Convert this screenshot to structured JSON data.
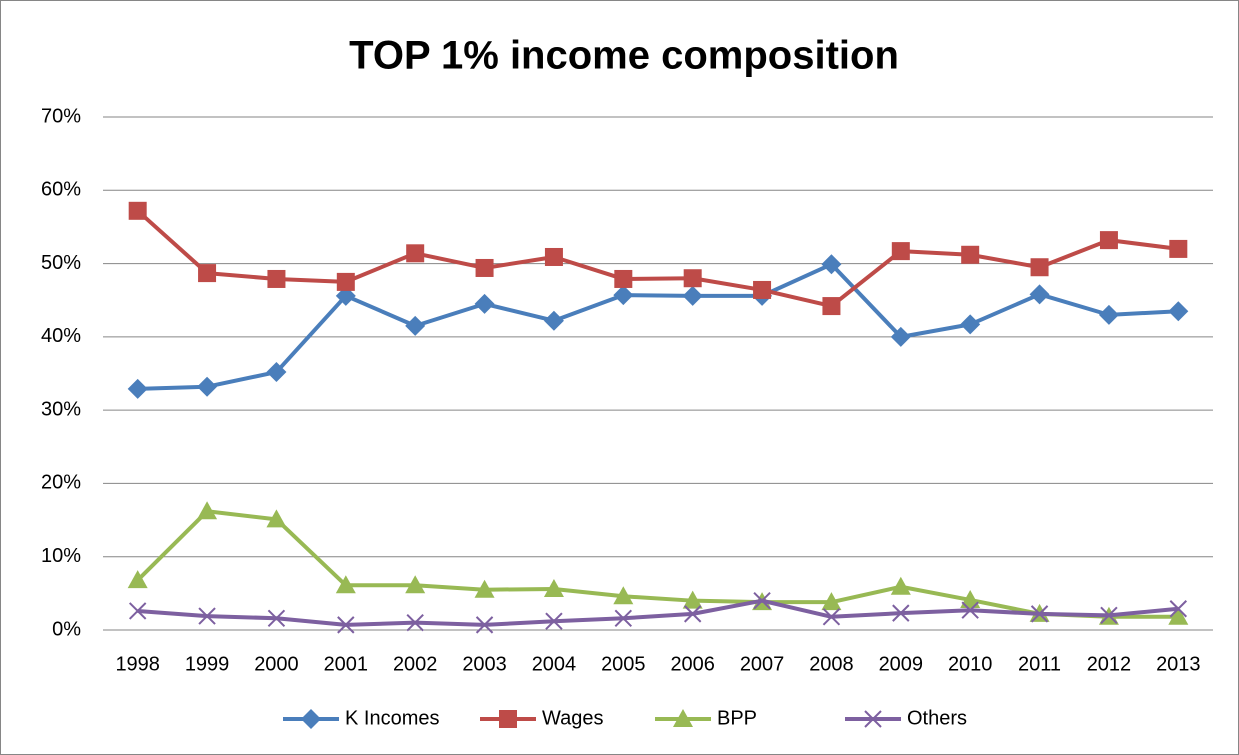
{
  "chart_data": {
    "type": "line",
    "title": "TOP 1% income composition",
    "categories": [
      "1998",
      "1999",
      "2000",
      "2001",
      "2002",
      "2003",
      "2004",
      "2005",
      "2006",
      "2007",
      "2008",
      "2009",
      "2010",
      "2011",
      "2012",
      "2013"
    ],
    "series": [
      {
        "name": "K Incomes",
        "color": "#4a7ebb",
        "marker": "diamond",
        "values": [
          32.9,
          33.2,
          35.2,
          45.6,
          41.5,
          44.5,
          42.2,
          45.7,
          45.6,
          45.6,
          49.9,
          40.0,
          41.7,
          45.8,
          43.0,
          43.5
        ]
      },
      {
        "name": "Wages",
        "color": "#be4b48",
        "marker": "square",
        "values": [
          57.2,
          48.7,
          47.9,
          47.5,
          51.4,
          49.4,
          50.9,
          47.9,
          48.0,
          46.4,
          44.2,
          51.7,
          51.2,
          49.5,
          53.2,
          52.0
        ]
      },
      {
        "name": "BPP",
        "color": "#98b954",
        "marker": "triangle",
        "values": [
          6.8,
          16.2,
          15.1,
          6.1,
          6.1,
          5.5,
          5.6,
          4.6,
          4.0,
          3.8,
          3.8,
          5.9,
          4.1,
          2.2,
          1.8,
          1.8
        ]
      },
      {
        "name": "Others",
        "color": "#7d60a0",
        "marker": "x",
        "values": [
          2.6,
          1.9,
          1.6,
          0.7,
          1.0,
          0.7,
          1.2,
          1.6,
          2.2,
          4.0,
          1.8,
          2.3,
          2.7,
          2.2,
          2.0,
          2.9
        ]
      }
    ],
    "ylim": [
      0,
      70
    ],
    "yticks": [
      {
        "value": 0,
        "label": "0%"
      },
      {
        "value": 10,
        "label": "10%"
      },
      {
        "value": 20,
        "label": "20%"
      },
      {
        "value": 30,
        "label": "30%"
      },
      {
        "value": 40,
        "label": "40%"
      },
      {
        "value": 50,
        "label": "50%"
      },
      {
        "value": 60,
        "label": "60%"
      },
      {
        "value": 70,
        "label": "70%"
      }
    ],
    "grid": true,
    "legend": "bottom"
  }
}
